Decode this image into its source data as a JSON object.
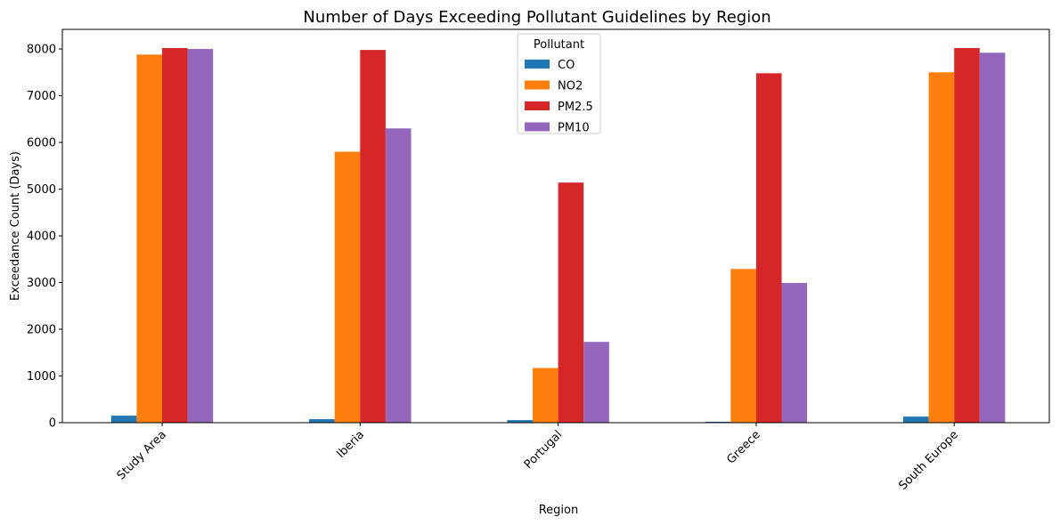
{
  "chart_data": {
    "type": "bar",
    "title": "Number of Days Exceeding Pollutant Guidelines by Region",
    "xlabel": "Region",
    "ylabel": "Exceedance Count (Days)",
    "categories": [
      "Study Area",
      "Iberia",
      "Portugal",
      "Greece",
      "South Europe"
    ],
    "series": [
      {
        "name": "CO",
        "color": "#1f77b4",
        "values": [
          150,
          75,
          55,
          20,
          130
        ]
      },
      {
        "name": "NO2",
        "color": "#ff7f0e",
        "values": [
          7880,
          5800,
          1170,
          3290,
          7500
        ]
      },
      {
        "name": "PM2.5",
        "color": "#d62728",
        "values": [
          8020,
          7980,
          5140,
          7480,
          8020
        ]
      },
      {
        "name": "PM10",
        "color": "#9467bd",
        "values": [
          8000,
          6300,
          1730,
          2990,
          7920
        ]
      }
    ],
    "ylim": [
      0,
      8420
    ],
    "yticks": [
      0,
      1000,
      2000,
      3000,
      4000,
      5000,
      6000,
      7000,
      8000
    ],
    "legend": {
      "title": "Pollutant",
      "placement": "top-center"
    },
    "grid": false
  }
}
